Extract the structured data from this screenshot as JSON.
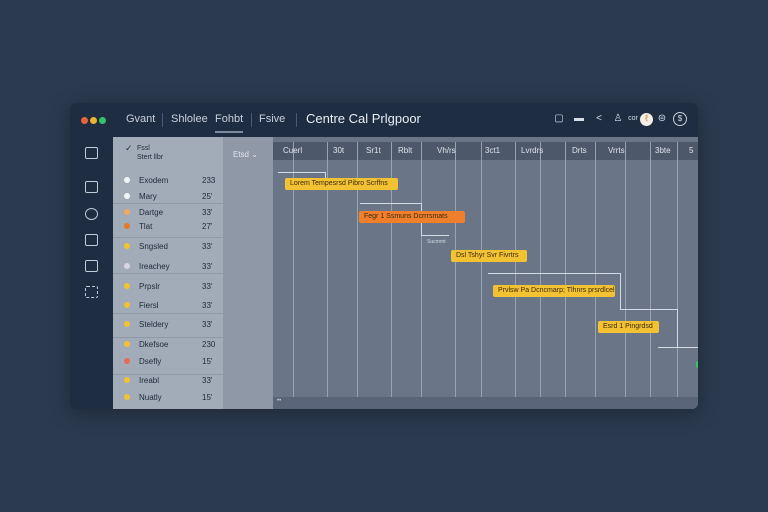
{
  "window": {
    "title": "Centre Cal Prlgpoor",
    "controls": [
      "#e8643c",
      "#e6b431",
      "#35c36a"
    ]
  },
  "nav": [
    {
      "label": "Gvant"
    },
    {
      "label": "Shlolee"
    },
    {
      "label": "Fohbt",
      "active": true
    },
    {
      "label": "Fsive"
    }
  ],
  "toolbar_icons": [
    "bookmark-icon",
    "inbox-icon",
    "share-icon",
    "user-upload-icon",
    "more-icon",
    "avatar",
    "layers-icon",
    "help-icon"
  ],
  "toolbar_small": "cor",
  "list": {
    "header_line1": "Fssl",
    "header_line2": "Stert llbr",
    "col2_header": "Etsd"
  },
  "timeline_headers": [
    "Cuerl",
    "30t",
    "Sr1t",
    "Rblt",
    "Vh/rs",
    "3ct1",
    "Lvrdrs",
    "Drts",
    "Vrrts",
    "3bte",
    "5"
  ],
  "tasks": [
    {
      "name": "Exodem",
      "value": "233",
      "color": "#f2f4f7"
    },
    {
      "name": "Mary",
      "value": "25'",
      "color": "#f2f4f7"
    },
    {
      "name": "Dartge",
      "value": "33'",
      "color": "#f2a860"
    },
    {
      "name": "Tlat",
      "value": "27'",
      "color": "#e8782c"
    },
    {
      "name": "Sngsled",
      "value": "33'",
      "color": "#f3c233"
    },
    {
      "name": "Ireachey",
      "value": "33'",
      "color": "#d8d4e6"
    },
    {
      "name": "Prpslr",
      "value": "33'",
      "color": "#f3c233"
    },
    {
      "name": "Fiersl",
      "value": "33'",
      "color": "#f3c233"
    },
    {
      "name": "Steldery",
      "value": "33'",
      "color": "#f3c233"
    },
    {
      "name": "Dkefsoe",
      "value": "230",
      "color": "#f3c233"
    },
    {
      "name": "Dsefly",
      "value": "15'",
      "color": "#e86a5a"
    },
    {
      "name": "Ireabl",
      "value": "33'",
      "color": "#f3c233"
    },
    {
      "name": "Nuatly",
      "value": "15'",
      "color": "#f3c233"
    }
  ],
  "bars": [
    {
      "label": "Lorem Tempesrsd Pibro Scrffns",
      "color": "#f3c233"
    },
    {
      "label": "Fegr 1 Ssmuns Dcrrrsmats",
      "color": "#ef7f2a"
    },
    {
      "label": "Dsl Tshyr Svr Fivrtrs",
      "color": "#f3c233"
    },
    {
      "label": "Prvlsw Pa Dcncmarp; Tlhnrs prsrdlcel",
      "color": "#f3c233"
    },
    {
      "label": "Esrd 1 Pingrdsd",
      "color": "#f3c233"
    }
  ],
  "milestone_label": "Sucrnmt",
  "bottom_marker": "••"
}
